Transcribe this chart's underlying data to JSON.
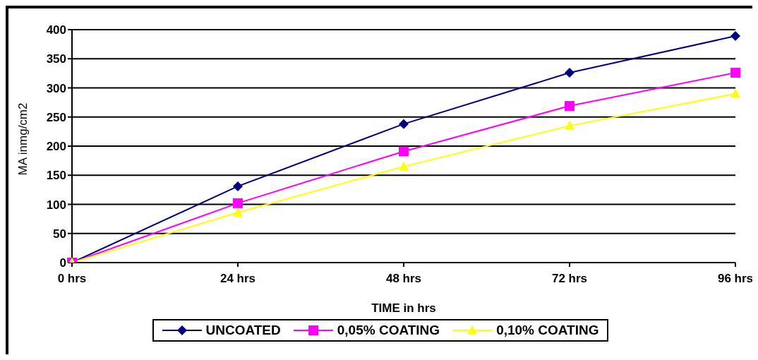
{
  "chart_data": {
    "type": "line",
    "xlabel": "TIME in hrs",
    "ylabel": "MA inmg/cm2",
    "categories": [
      "0 hrs",
      "24 hrs",
      "48 hrs",
      "72 hrs",
      "96 hrs"
    ],
    "series": [
      {
        "name": "UNCOATED",
        "color": "#000080",
        "marker": "diamond",
        "values": [
          0,
          131,
          238,
          326,
          389
        ]
      },
      {
        "name": "0,05% COATING",
        "color": "#ff00ff",
        "marker": "square",
        "values": [
          0,
          102,
          191,
          269,
          326
        ]
      },
      {
        "name": "0,10% COATING",
        "color": "#ffff00",
        "marker": "triangle",
        "values": [
          0,
          86,
          165,
          235,
          290
        ]
      }
    ],
    "ylim": [
      0,
      400
    ],
    "yticks": [
      0,
      50,
      100,
      150,
      200,
      250,
      300,
      350,
      400
    ],
    "grid": "y",
    "legend": "bottom"
  }
}
